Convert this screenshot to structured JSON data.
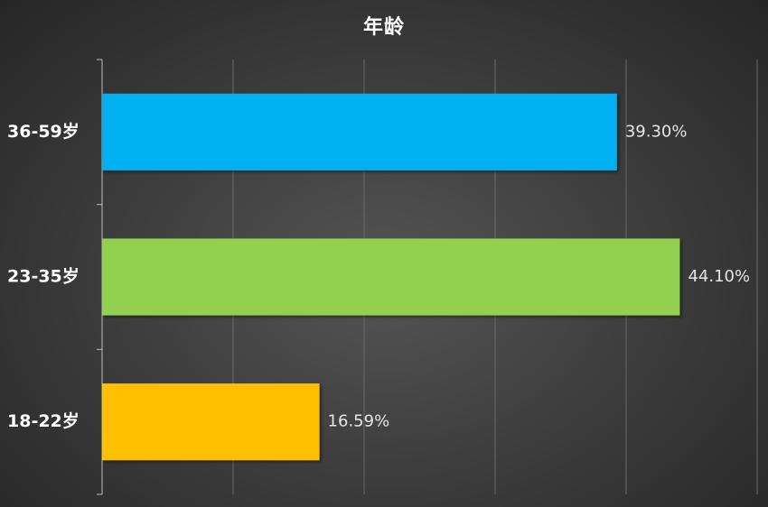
{
  "chart_data": {
    "type": "bar",
    "orientation": "horizontal",
    "title": "年龄",
    "categories": [
      "36-59岁",
      "23-35岁",
      "18-22岁"
    ],
    "values": [
      39.3,
      44.1,
      16.59
    ],
    "value_labels": [
      "39.30%",
      "44.10%",
      "16.59%"
    ],
    "colors": [
      "#00b0f0",
      "#92d050",
      "#ffc000"
    ],
    "xlim": [
      0,
      50
    ],
    "x_gridlines": [
      10,
      20,
      30,
      40,
      50
    ],
    "xlabel": "",
    "ylabel": "",
    "grid": true,
    "legend": "none"
  }
}
